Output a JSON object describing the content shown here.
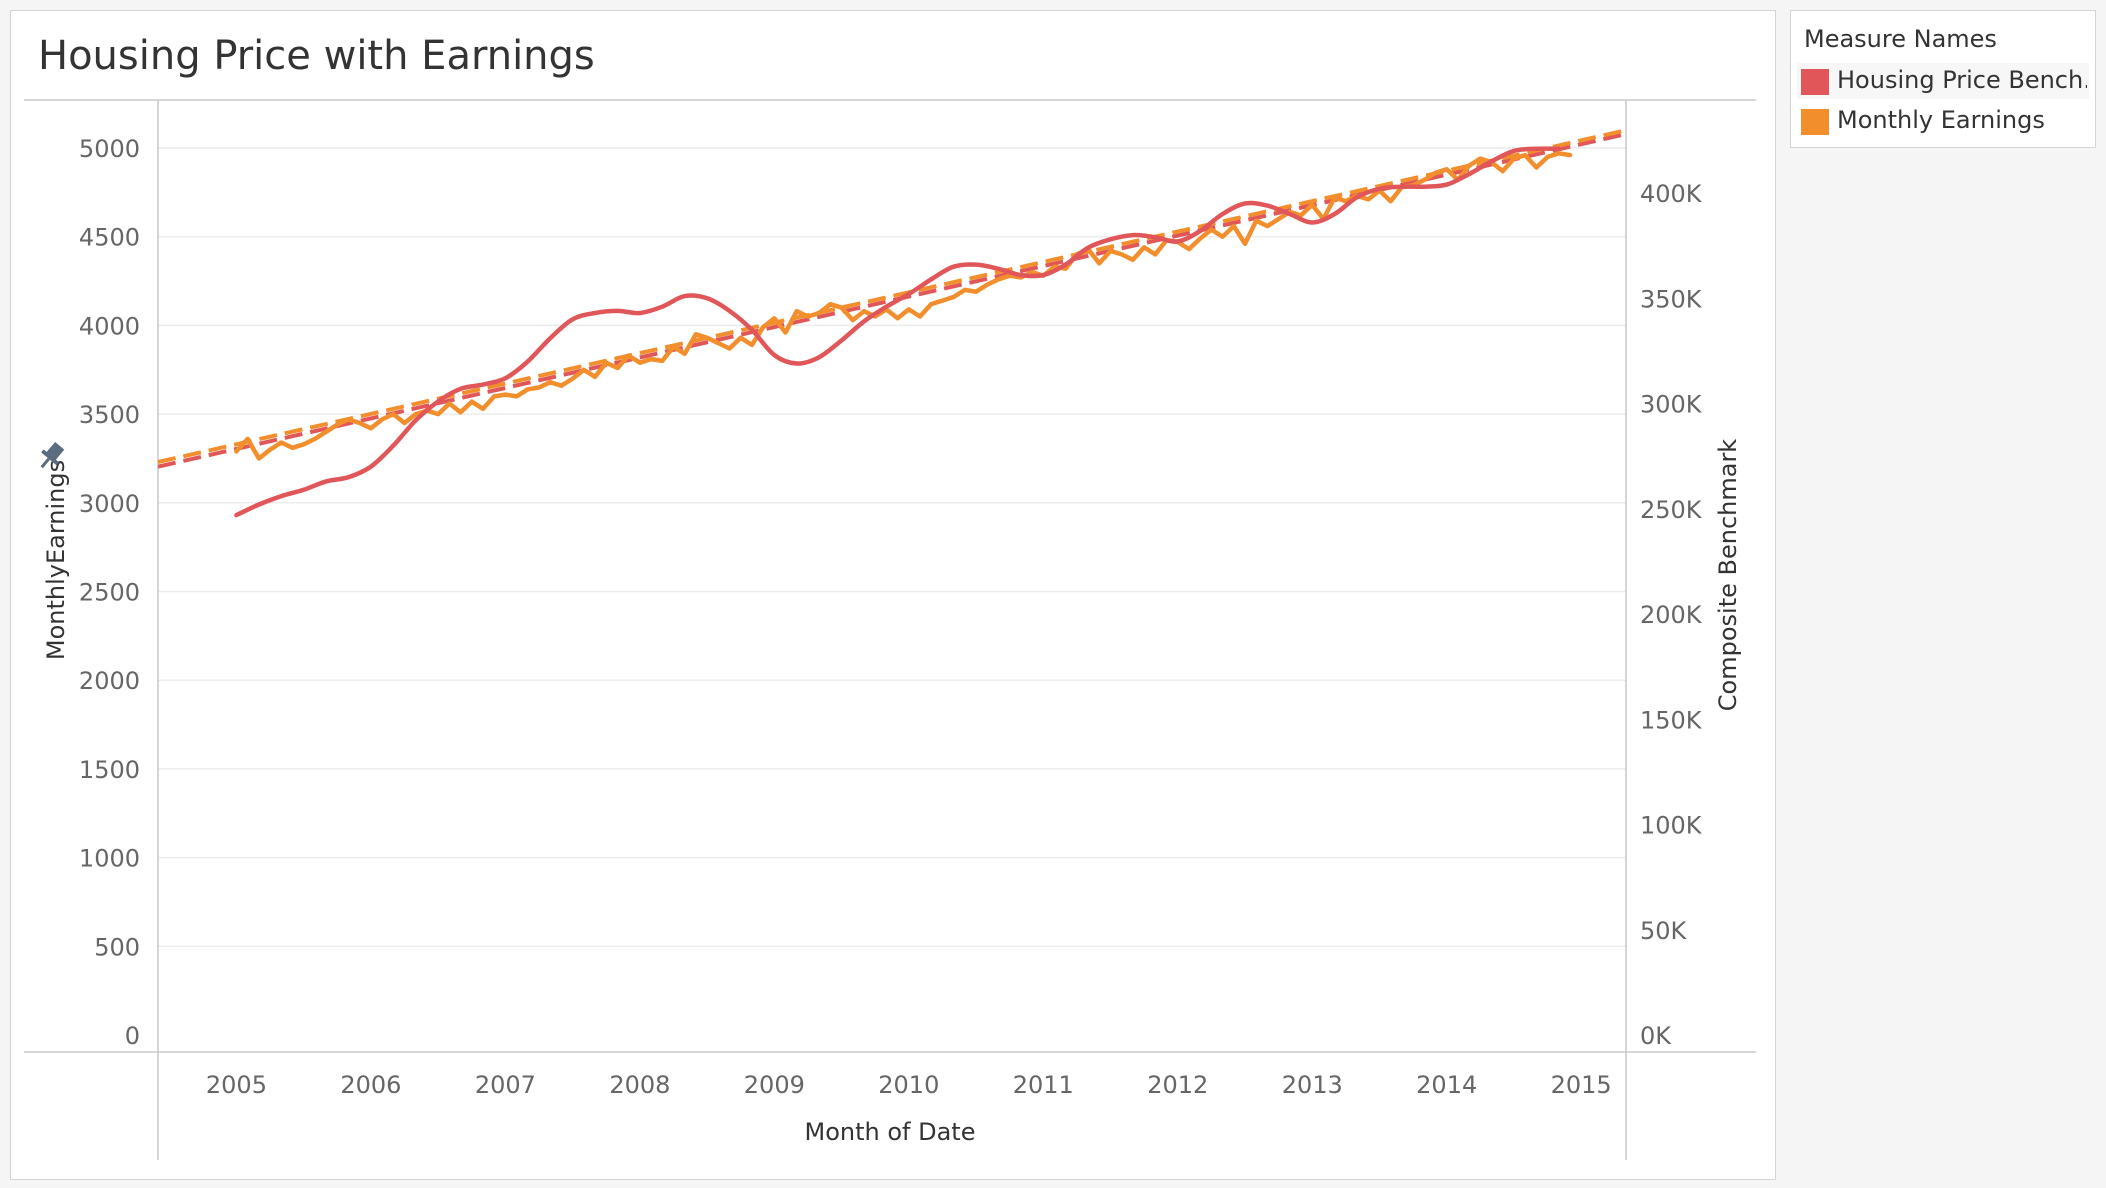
{
  "title": "Housing Price with Earnings",
  "legend": {
    "title": "Measure Names",
    "items": [
      {
        "label": "Housing Price Bench..",
        "color": "#e15759"
      },
      {
        "label": "Monthly Earnings",
        "color": "#f28e2b"
      }
    ]
  },
  "chart_data": {
    "type": "line",
    "title": "Housing Price with Earnings",
    "xlabel": "Month of Date",
    "ylabel_left": "MonthlyEarnings",
    "ylabel_right": "Composite Benchmark",
    "x_ticks": [
      "2005",
      "2006",
      "2007",
      "2008",
      "2009",
      "2010",
      "2011",
      "2012",
      "2013",
      "2014",
      "2015"
    ],
    "y_left_ticks": [
      "0",
      "500",
      "1000",
      "1500",
      "2000",
      "2500",
      "3000",
      "3500",
      "4000",
      "4500",
      "5000"
    ],
    "y_right_ticks": [
      "0K",
      "50K",
      "100K",
      "150K",
      "200K",
      "250K",
      "300K",
      "350K",
      "400K"
    ],
    "y_left_range": [
      0,
      5000
    ],
    "y_right_range": [
      0,
      420000
    ],
    "x_range": [
      "2004-06",
      "2015-05"
    ],
    "grid": "horizontal",
    "legend_position": "right",
    "series": [
      {
        "name": "Housing Price Bench..",
        "axis": "right",
        "color": "#e15759",
        "data": [
          [
            "2005-01",
            247000
          ],
          [
            "2005-03",
            252000
          ],
          [
            "2005-05",
            256000
          ],
          [
            "2005-07",
            259000
          ],
          [
            "2005-09",
            263000
          ],
          [
            "2005-11",
            265000
          ],
          [
            "2006-01",
            270000
          ],
          [
            "2006-03",
            280000
          ],
          [
            "2006-05",
            292000
          ],
          [
            "2006-07",
            301000
          ],
          [
            "2006-09",
            307000
          ],
          [
            "2006-11",
            309000
          ],
          [
            "2007-01",
            312000
          ],
          [
            "2007-03",
            320000
          ],
          [
            "2007-05",
            331000
          ],
          [
            "2007-07",
            340000
          ],
          [
            "2007-09",
            343000
          ],
          [
            "2007-11",
            344000
          ],
          [
            "2008-01",
            343000
          ],
          [
            "2008-03",
            346000
          ],
          [
            "2008-05",
            351000
          ],
          [
            "2008-07",
            350000
          ],
          [
            "2008-09",
            344000
          ],
          [
            "2008-11",
            335000
          ],
          [
            "2009-01",
            323000
          ],
          [
            "2009-03",
            319000
          ],
          [
            "2009-05",
            322000
          ],
          [
            "2009-07",
            330000
          ],
          [
            "2009-09",
            339000
          ],
          [
            "2009-11",
            346000
          ],
          [
            "2010-01",
            352000
          ],
          [
            "2010-03",
            359000
          ],
          [
            "2010-05",
            365000
          ],
          [
            "2010-07",
            366000
          ],
          [
            "2010-09",
            364000
          ],
          [
            "2010-11",
            361000
          ],
          [
            "2011-01",
            361000
          ],
          [
            "2011-03",
            366000
          ],
          [
            "2011-05",
            374000
          ],
          [
            "2011-07",
            378000
          ],
          [
            "2011-09",
            380000
          ],
          [
            "2011-11",
            379000
          ],
          [
            "2012-01",
            377000
          ],
          [
            "2012-03",
            382000
          ],
          [
            "2012-05",
            390000
          ],
          [
            "2012-07",
            395000
          ],
          [
            "2012-09",
            394000
          ],
          [
            "2012-11",
            390000
          ],
          [
            "2013-01",
            386000
          ],
          [
            "2013-03",
            390000
          ],
          [
            "2013-05",
            398000
          ],
          [
            "2013-07",
            402000
          ],
          [
            "2013-09",
            403000
          ],
          [
            "2013-11",
            403000
          ],
          [
            "2014-01",
            404000
          ],
          [
            "2014-03",
            409000
          ],
          [
            "2014-05",
            415000
          ],
          [
            "2014-07",
            420000
          ],
          [
            "2014-09",
            421000
          ],
          [
            "2014-11",
            421000
          ]
        ],
        "trend": {
          "start": [
            "2004-06",
            270000
          ],
          "end": [
            "2015-05",
            428000
          ]
        }
      },
      {
        "name": "Monthly Earnings",
        "axis": "left",
        "color": "#f28e2b",
        "data": [
          [
            "2005-01",
            3290
          ],
          [
            "2005-02",
            3360
          ],
          [
            "2005-03",
            3250
          ],
          [
            "2005-04",
            3300
          ],
          [
            "2005-05",
            3340
          ],
          [
            "2005-06",
            3310
          ],
          [
            "2005-07",
            3330
          ],
          [
            "2005-08",
            3360
          ],
          [
            "2005-09",
            3400
          ],
          [
            "2005-10",
            3440
          ],
          [
            "2005-11",
            3470
          ],
          [
            "2005-12",
            3450
          ],
          [
            "2006-01",
            3420
          ],
          [
            "2006-02",
            3470
          ],
          [
            "2006-03",
            3500
          ],
          [
            "2006-04",
            3450
          ],
          [
            "2006-05",
            3500
          ],
          [
            "2006-06",
            3520
          ],
          [
            "2006-07",
            3500
          ],
          [
            "2006-08",
            3560
          ],
          [
            "2006-09",
            3510
          ],
          [
            "2006-10",
            3570
          ],
          [
            "2006-11",
            3530
          ],
          [
            "2006-12",
            3600
          ],
          [
            "2007-01",
            3610
          ],
          [
            "2007-02",
            3600
          ],
          [
            "2007-03",
            3640
          ],
          [
            "2007-04",
            3650
          ],
          [
            "2007-05",
            3680
          ],
          [
            "2007-06",
            3660
          ],
          [
            "2007-07",
            3700
          ],
          [
            "2007-08",
            3750
          ],
          [
            "2007-09",
            3710
          ],
          [
            "2007-10",
            3790
          ],
          [
            "2007-11",
            3760
          ],
          [
            "2007-12",
            3830
          ],
          [
            "2008-01",
            3790
          ],
          [
            "2008-02",
            3810
          ],
          [
            "2008-03",
            3800
          ],
          [
            "2008-04",
            3880
          ],
          [
            "2008-05",
            3840
          ],
          [
            "2008-06",
            3950
          ],
          [
            "2008-07",
            3930
          ],
          [
            "2008-08",
            3900
          ],
          [
            "2008-09",
            3870
          ],
          [
            "2008-10",
            3930
          ],
          [
            "2008-11",
            3890
          ],
          [
            "2008-12",
            3990
          ],
          [
            "2009-01",
            4040
          ],
          [
            "2009-02",
            3960
          ],
          [
            "2009-03",
            4080
          ],
          [
            "2009-04",
            4050
          ],
          [
            "2009-05",
            4070
          ],
          [
            "2009-06",
            4120
          ],
          [
            "2009-07",
            4100
          ],
          [
            "2009-08",
            4030
          ],
          [
            "2009-09",
            4080
          ],
          [
            "2009-10",
            4050
          ],
          [
            "2009-11",
            4090
          ],
          [
            "2009-12",
            4040
          ],
          [
            "2010-01",
            4090
          ],
          [
            "2010-02",
            4050
          ],
          [
            "2010-03",
            4120
          ],
          [
            "2010-04",
            4140
          ],
          [
            "2010-05",
            4160
          ],
          [
            "2010-06",
            4200
          ],
          [
            "2010-07",
            4190
          ],
          [
            "2010-08",
            4230
          ],
          [
            "2010-09",
            4260
          ],
          [
            "2010-10",
            4280
          ],
          [
            "2010-11",
            4270
          ],
          [
            "2010-12",
            4300
          ],
          [
            "2011-01",
            4280
          ],
          [
            "2011-02",
            4330
          ],
          [
            "2011-03",
            4320
          ],
          [
            "2011-04",
            4400
          ],
          [
            "2011-05",
            4430
          ],
          [
            "2011-06",
            4350
          ],
          [
            "2011-07",
            4420
          ],
          [
            "2011-08",
            4400
          ],
          [
            "2011-09",
            4370
          ],
          [
            "2011-10",
            4440
          ],
          [
            "2011-11",
            4400
          ],
          [
            "2011-12",
            4480
          ],
          [
            "2012-01",
            4470
          ],
          [
            "2012-02",
            4430
          ],
          [
            "2012-03",
            4490
          ],
          [
            "2012-04",
            4540
          ],
          [
            "2012-05",
            4500
          ],
          [
            "2012-06",
            4560
          ],
          [
            "2012-07",
            4460
          ],
          [
            "2012-08",
            4590
          ],
          [
            "2012-09",
            4560
          ],
          [
            "2012-10",
            4600
          ],
          [
            "2012-11",
            4640
          ],
          [
            "2012-12",
            4620
          ],
          [
            "2013-01",
            4680
          ],
          [
            "2013-02",
            4600
          ],
          [
            "2013-03",
            4720
          ],
          [
            "2013-04",
            4700
          ],
          [
            "2013-05",
            4730
          ],
          [
            "2013-06",
            4710
          ],
          [
            "2013-07",
            4760
          ],
          [
            "2013-08",
            4700
          ],
          [
            "2013-09",
            4780
          ],
          [
            "2013-10",
            4790
          ],
          [
            "2013-11",
            4820
          ],
          [
            "2013-12",
            4860
          ],
          [
            "2014-01",
            4880
          ],
          [
            "2014-02",
            4820
          ],
          [
            "2014-03",
            4900
          ],
          [
            "2014-04",
            4940
          ],
          [
            "2014-05",
            4920
          ],
          [
            "2014-06",
            4870
          ],
          [
            "2014-07",
            4940
          ],
          [
            "2014-08",
            4960
          ],
          [
            "2014-09",
            4890
          ],
          [
            "2014-10",
            4950
          ],
          [
            "2014-11",
            4970
          ],
          [
            "2014-12",
            4960
          ]
        ],
        "trend": {
          "start": [
            "2004-06",
            3230
          ],
          "end": [
            "2015-05",
            5100
          ]
        }
      }
    ]
  }
}
